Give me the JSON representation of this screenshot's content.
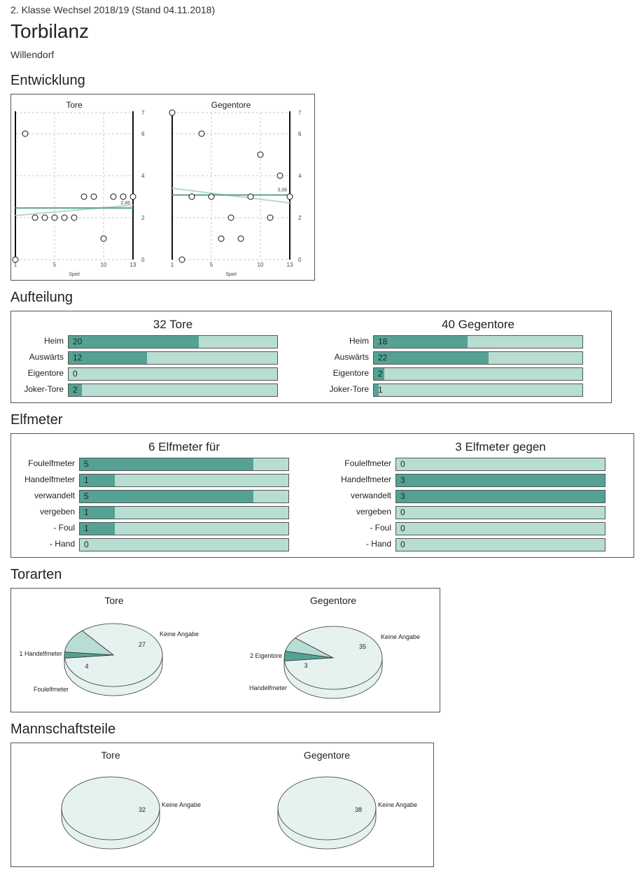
{
  "header": {
    "subtitle": "2. Klasse Wechsel 2018/19 (Stand 04.11.2018)",
    "title": "Torbilanz",
    "club": "Willendorf"
  },
  "sections": {
    "entwicklung": "Entwicklung",
    "aufteilung": "Aufteilung",
    "elfmeter": "Elfmeter",
    "torarten": "Torarten",
    "mannschaftsteile": "Mannschaftsteile"
  },
  "colors": {
    "dark": "#55a295",
    "light": "#b8ddd3",
    "pie_light": "#e6f2ef",
    "trend": "#5aa292",
    "regression": "#b9d5cf"
  },
  "chart_data": [
    {
      "id": "entwicklung_tore",
      "type": "scatter",
      "title": "Tore",
      "xlabel": "Spiel",
      "x": [
        1,
        2,
        3,
        4,
        5,
        6,
        7,
        8,
        9,
        10,
        11,
        12,
        13
      ],
      "values": [
        0,
        6,
        2,
        2,
        2,
        2,
        2,
        3,
        3,
        1,
        3,
        3,
        3
      ],
      "average": 2.46,
      "average_label": "2,46",
      "xticks": [
        1,
        5,
        10,
        13
      ],
      "yticks": [
        0,
        2,
        4,
        6,
        7
      ],
      "xlim": [
        1,
        13
      ],
      "ylim": [
        0,
        7
      ],
      "regression": [
        2.1,
        2.6
      ]
    },
    {
      "id": "entwicklung_gegentore",
      "type": "scatter",
      "title": "Gegentore",
      "xlabel": "Spiel",
      "x": [
        1,
        2,
        3,
        4,
        5,
        6,
        7,
        8,
        9,
        10,
        11,
        12,
        13
      ],
      "values": [
        7,
        0,
        3,
        6,
        3,
        1,
        2,
        1,
        3,
        5,
        2,
        4,
        3
      ],
      "average": 3.08,
      "average_label": "3,08",
      "xticks": [
        1,
        5,
        10,
        13
      ],
      "yticks": [
        0,
        2,
        4,
        6,
        7
      ],
      "xlim": [
        1,
        13
      ],
      "ylim": [
        0,
        7
      ],
      "regression": [
        3.4,
        2.7
      ]
    },
    {
      "id": "aufteilung_tore",
      "type": "bar",
      "title": "32 Tore",
      "max": 32,
      "categories": [
        "Heim",
        "Auswärts",
        "Eigentore",
        "Joker-Tore"
      ],
      "values": [
        20,
        12,
        0,
        2
      ]
    },
    {
      "id": "aufteilung_gegentore",
      "type": "bar",
      "title": "40 Gegentore",
      "max": 40,
      "categories": [
        "Heim",
        "Auswärts",
        "Eigentore",
        "Joker-Tore"
      ],
      "values": [
        18,
        22,
        2,
        1
      ]
    },
    {
      "id": "elfmeter_fuer",
      "type": "bar",
      "title": "6 Elfmeter für",
      "max": 6,
      "categories": [
        "Foulelfmeter",
        "Handelfmeter",
        "verwandelt",
        "vergeben",
        "- Foul",
        "- Hand"
      ],
      "values": [
        5,
        1,
        5,
        1,
        1,
        0
      ]
    },
    {
      "id": "elfmeter_gegen",
      "type": "bar",
      "title": "3 Elfmeter gegen",
      "max": 3,
      "categories": [
        "Foulelfmeter",
        "Handelfmeter",
        "verwandelt",
        "vergeben",
        "- Foul",
        "- Hand"
      ],
      "values": [
        0,
        3,
        3,
        0,
        0,
        0
      ]
    },
    {
      "id": "torarten_tore",
      "type": "pie",
      "title": "Tore",
      "slices": [
        {
          "label": "Keine Angabe",
          "value": 27,
          "shown": "27"
        },
        {
          "label": "1 Handelfmeter",
          "value": 1,
          "shown": ""
        },
        {
          "label": "Foulelfmeter",
          "value": 4,
          "shown": "4"
        }
      ]
    },
    {
      "id": "torarten_gegentore",
      "type": "pie",
      "title": "Gegentore",
      "slices": [
        {
          "label": "Keine Angabe",
          "value": 35,
          "shown": "35"
        },
        {
          "label": "2 Eigentore",
          "value": 2,
          "shown": ""
        },
        {
          "label": "Handelfmeter",
          "value": 3,
          "shown": "3"
        }
      ]
    },
    {
      "id": "mannschaftsteile_tore",
      "type": "pie",
      "title": "Tore",
      "slices": [
        {
          "label": "Keine Angabe",
          "value": 32,
          "shown": "32"
        }
      ]
    },
    {
      "id": "mannschaftsteile_gegentore",
      "type": "pie",
      "title": "Gegentore",
      "slices": [
        {
          "label": "Keine Angabe",
          "value": 38,
          "shown": "38"
        }
      ]
    }
  ]
}
